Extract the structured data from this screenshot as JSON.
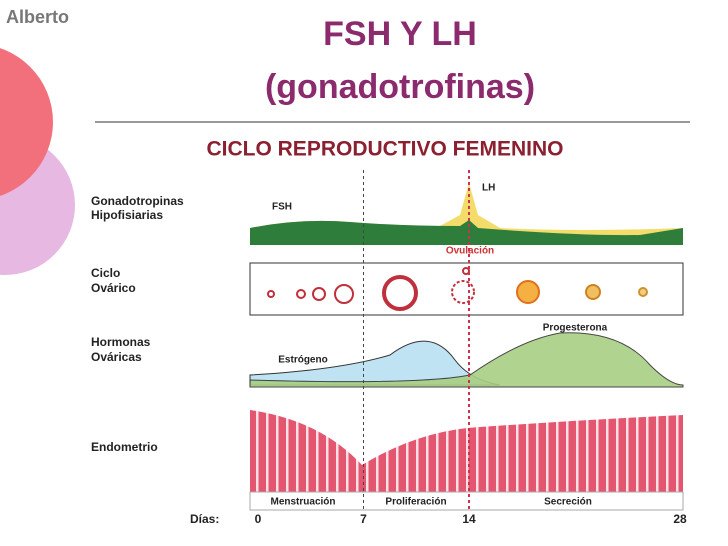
{
  "header": {
    "author": "Alberto",
    "title": "FSH Y LH",
    "subtitle": "(gonadotrofinas)"
  },
  "diagram": {
    "title": "CICLO REPRODUCTIVO FEMENINO",
    "rows": [
      [
        "Gonadotropinas",
        "Hipofisiarias"
      ],
      [
        "Ciclo",
        "Ovárico"
      ],
      [
        "Hormonas",
        "Ováricas"
      ],
      [
        "Endometrio"
      ]
    ],
    "annotations": {
      "fsh": "FSH",
      "lh": "LH",
      "ovulation": "Ovulación",
      "progesterone": "Progesterona",
      "estrogen": "Estrógeno"
    },
    "phases": [
      "Menstruación",
      "Proliferación",
      "Secreción"
    ],
    "days_label": "Días:",
    "days": [
      0,
      7,
      14,
      28
    ]
  }
}
